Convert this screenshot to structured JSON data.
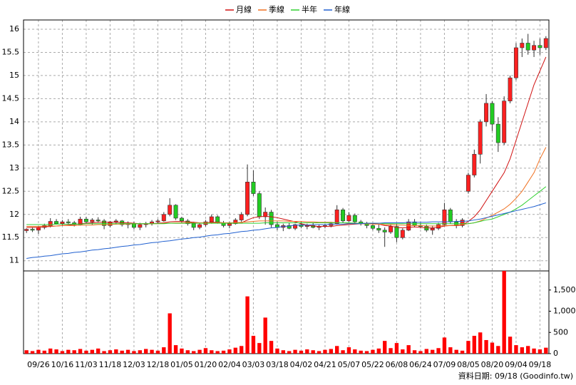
{
  "chart_data": {
    "type": "candlestick",
    "categories": [
      null,
      null,
      "09/26",
      null,
      null,
      null,
      "10/16",
      null,
      null,
      null,
      "11/03",
      null,
      null,
      null,
      "11/18",
      null,
      null,
      null,
      "12/03",
      null,
      null,
      null,
      "12/18",
      null,
      null,
      null,
      "01/05",
      null,
      null,
      null,
      "01/20",
      null,
      null,
      null,
      "02/04",
      null,
      null,
      null,
      "03/03",
      null,
      null,
      null,
      "03/18",
      null,
      null,
      null,
      "04/02",
      null,
      null,
      null,
      "04/21",
      null,
      null,
      null,
      "05/07",
      null,
      null,
      null,
      "05/22",
      null,
      null,
      null,
      "06/08",
      null,
      null,
      null,
      "06/24",
      null,
      null,
      null,
      "07/09",
      null,
      null,
      null,
      "08/05",
      null,
      null,
      null,
      "08/20",
      null,
      null,
      null,
      "09/04",
      null,
      null,
      null,
      "09/18",
      null
    ],
    "open": [
      11.65,
      11.68,
      11.66,
      11.72,
      11.76,
      11.85,
      11.8,
      11.84,
      11.82,
      11.78,
      11.9,
      11.84,
      11.88,
      11.86,
      11.76,
      11.84,
      11.86,
      11.78,
      11.8,
      11.72,
      11.78,
      11.8,
      11.84,
      11.86,
      12.0,
      12.2,
      11.92,
      11.86,
      11.8,
      11.72,
      11.78,
      11.84,
      11.95,
      11.82,
      11.76,
      11.8,
      11.88,
      12.0,
      12.7,
      12.45,
      11.95,
      12.05,
      11.78,
      11.72,
      11.76,
      11.7,
      11.78,
      11.74,
      11.76,
      11.72,
      11.74,
      11.76,
      11.8,
      12.1,
      11.86,
      11.98,
      11.84,
      11.8,
      11.76,
      11.7,
      11.66,
      11.62,
      11.74,
      11.5,
      11.66,
      11.84,
      11.76,
      11.74,
      11.66,
      11.7,
      11.78,
      12.1,
      11.84,
      11.76,
      12.5,
      12.85,
      13.3,
      14.0,
      14.4,
      13.95,
      13.55,
      14.45,
      14.95,
      15.6,
      15.7,
      15.55,
      15.65,
      15.6
    ],
    "high": [
      11.7,
      11.72,
      11.75,
      11.8,
      11.92,
      11.9,
      11.88,
      11.9,
      11.86,
      11.95,
      11.95,
      11.92,
      11.94,
      11.9,
      11.86,
      11.9,
      11.88,
      11.85,
      11.84,
      11.82,
      11.84,
      11.88,
      11.9,
      12.05,
      12.35,
      12.22,
      11.95,
      11.9,
      11.84,
      11.82,
      11.88,
      12.0,
      11.98,
      11.86,
      11.84,
      11.92,
      12.05,
      13.08,
      12.95,
      12.5,
      12.15,
      12.1,
      11.84,
      11.8,
      11.82,
      11.8,
      11.84,
      11.8,
      11.82,
      11.78,
      11.8,
      11.84,
      12.2,
      12.14,
      12.05,
      12.02,
      11.88,
      11.84,
      11.8,
      11.78,
      11.72,
      11.78,
      11.8,
      11.7,
      11.9,
      11.9,
      11.82,
      11.78,
      11.76,
      11.82,
      12.25,
      12.14,
      11.9,
      11.92,
      12.9,
      13.4,
      14.05,
      14.6,
      14.45,
      14.1,
      14.55,
      15.0,
      15.7,
      15.8,
      15.9,
      15.75,
      15.8,
      15.85
    ],
    "low": [
      11.6,
      11.62,
      11.58,
      11.68,
      11.72,
      11.78,
      11.75,
      11.78,
      11.74,
      11.76,
      11.8,
      11.78,
      11.82,
      11.68,
      11.72,
      11.78,
      11.74,
      11.7,
      11.68,
      11.66,
      11.72,
      11.76,
      11.8,
      11.84,
      11.96,
      11.88,
      11.82,
      11.76,
      11.66,
      11.68,
      11.74,
      11.8,
      11.8,
      11.72,
      11.7,
      11.78,
      11.84,
      11.96,
      12.4,
      11.9,
      11.78,
      11.72,
      11.66,
      11.64,
      11.68,
      11.66,
      11.7,
      11.68,
      11.7,
      11.66,
      11.7,
      11.72,
      11.78,
      11.82,
      11.84,
      11.8,
      11.76,
      11.7,
      11.66,
      11.6,
      11.3,
      11.58,
      11.4,
      11.46,
      11.64,
      11.72,
      11.7,
      11.62,
      11.56,
      11.66,
      11.74,
      11.8,
      11.7,
      11.72,
      12.45,
      12.8,
      13.1,
      13.9,
      13.8,
      13.35,
      13.5,
      14.4,
      14.9,
      15.4,
      15.45,
      15.4,
      15.45,
      15.55
    ],
    "close": [
      11.68,
      11.66,
      11.72,
      11.76,
      11.85,
      11.8,
      11.84,
      11.82,
      11.78,
      11.9,
      11.84,
      11.88,
      11.86,
      11.76,
      11.84,
      11.86,
      11.78,
      11.8,
      11.72,
      11.78,
      11.8,
      11.84,
      11.86,
      12.0,
      12.2,
      11.92,
      11.86,
      11.8,
      11.72,
      11.78,
      11.84,
      11.95,
      11.82,
      11.76,
      11.8,
      11.88,
      12.0,
      12.7,
      12.45,
      11.95,
      12.05,
      11.78,
      11.72,
      11.76,
      11.7,
      11.78,
      11.74,
      11.76,
      11.72,
      11.74,
      11.76,
      11.8,
      12.1,
      11.86,
      11.98,
      11.84,
      11.8,
      11.76,
      11.7,
      11.66,
      11.62,
      11.74,
      11.5,
      11.66,
      11.84,
      11.76,
      11.74,
      11.66,
      11.7,
      11.78,
      12.1,
      11.84,
      11.76,
      11.88,
      12.85,
      13.3,
      14.0,
      14.4,
      13.95,
      13.55,
      14.45,
      14.95,
      15.6,
      15.7,
      15.55,
      15.65,
      15.6,
      15.8
    ],
    "up_color": "#ff2020",
    "down_color": "#22cc22",
    "ylim": [
      10.78,
      16.2
    ],
    "yticks": [
      11,
      11.5,
      12,
      12.5,
      13,
      13.5,
      14,
      14.5,
      15,
      15.5,
      16
    ],
    "grid": true,
    "legend": "top",
    "series": [
      {
        "name": "月線",
        "color": "#d01010",
        "values": [
          11.72,
          11.72,
          11.72,
          11.73,
          11.74,
          11.75,
          11.76,
          11.77,
          11.78,
          11.8,
          11.81,
          11.82,
          11.83,
          11.83,
          11.83,
          11.83,
          11.82,
          11.82,
          11.81,
          11.8,
          11.8,
          11.8,
          11.81,
          11.82,
          11.84,
          11.85,
          11.85,
          11.84,
          11.83,
          11.82,
          11.82,
          11.83,
          11.83,
          11.82,
          11.81,
          11.81,
          11.82,
          11.88,
          11.93,
          11.95,
          11.96,
          11.95,
          11.93,
          11.9,
          11.87,
          11.84,
          11.8,
          11.77,
          11.75,
          11.74,
          11.74,
          11.74,
          11.76,
          11.77,
          11.78,
          11.79,
          11.8,
          11.8,
          11.8,
          11.79,
          11.76,
          11.75,
          11.72,
          11.71,
          11.72,
          11.73,
          11.72,
          11.71,
          11.71,
          11.72,
          11.75,
          11.76,
          11.76,
          11.77,
          11.85,
          11.95,
          12.1,
          12.3,
          12.5,
          12.7,
          12.9,
          13.2,
          13.6,
          14.0,
          14.4,
          14.8,
          15.1,
          15.4
        ]
      },
      {
        "name": "季線",
        "color": "#f07020",
        "values": [
          11.74,
          11.74,
          11.74,
          11.75,
          11.75,
          11.75,
          11.76,
          11.76,
          11.76,
          11.77,
          11.77,
          11.77,
          11.78,
          11.78,
          11.78,
          11.79,
          11.79,
          11.79,
          11.8,
          11.8,
          11.8,
          11.8,
          11.8,
          11.81,
          11.81,
          11.82,
          11.82,
          11.82,
          11.82,
          11.82,
          11.82,
          11.82,
          11.82,
          11.82,
          11.82,
          11.82,
          11.83,
          11.84,
          11.85,
          11.86,
          11.86,
          11.86,
          11.86,
          11.86,
          11.85,
          11.85,
          11.85,
          11.84,
          11.84,
          11.83,
          11.83,
          11.83,
          11.82,
          11.82,
          11.81,
          11.81,
          11.8,
          11.8,
          11.79,
          11.79,
          11.78,
          11.78,
          11.77,
          11.77,
          11.76,
          11.76,
          11.76,
          11.75,
          11.75,
          11.75,
          11.76,
          11.76,
          11.77,
          11.78,
          11.8,
          11.82,
          11.86,
          11.92,
          11.98,
          12.05,
          12.12,
          12.22,
          12.35,
          12.5,
          12.7,
          12.9,
          13.2,
          13.45
        ]
      },
      {
        "name": "半年",
        "color": "#30d030",
        "values": [
          11.78,
          11.78,
          11.78,
          11.78,
          11.78,
          11.79,
          11.79,
          11.79,
          11.79,
          11.79,
          11.8,
          11.8,
          11.8,
          11.8,
          11.8,
          11.8,
          11.8,
          11.8,
          11.8,
          11.8,
          11.8,
          11.8,
          11.8,
          11.8,
          11.81,
          11.81,
          11.81,
          11.81,
          11.81,
          11.81,
          11.81,
          11.81,
          11.81,
          11.81,
          11.81,
          11.81,
          11.81,
          11.81,
          11.81,
          11.81,
          11.82,
          11.82,
          11.82,
          11.82,
          11.82,
          11.82,
          11.82,
          11.82,
          11.82,
          11.82,
          11.82,
          11.82,
          11.82,
          11.82,
          11.82,
          11.81,
          11.81,
          11.81,
          11.81,
          11.81,
          11.8,
          11.8,
          11.8,
          11.8,
          11.8,
          11.8,
          11.8,
          11.8,
          11.8,
          11.8,
          11.8,
          11.8,
          11.8,
          11.8,
          11.8,
          11.82,
          11.85,
          11.88,
          11.9,
          11.95,
          12.0,
          12.05,
          12.12,
          12.2,
          12.3,
          12.4,
          12.5,
          12.6
        ]
      },
      {
        "name": "年線",
        "color": "#2060d0",
        "values": [
          11.05,
          11.07,
          11.08,
          11.1,
          11.11,
          11.13,
          11.15,
          11.16,
          11.18,
          11.19,
          11.21,
          11.23,
          11.24,
          11.26,
          11.27,
          11.29,
          11.31,
          11.32,
          11.34,
          11.35,
          11.37,
          11.39,
          11.4,
          11.42,
          11.43,
          11.45,
          11.47,
          11.48,
          11.5,
          11.51,
          11.53,
          11.55,
          11.56,
          11.58,
          11.59,
          11.61,
          11.63,
          11.64,
          11.66,
          11.67,
          11.69,
          11.71,
          11.72,
          11.74,
          11.75,
          11.77,
          11.77,
          11.77,
          11.78,
          11.78,
          11.78,
          11.79,
          11.79,
          11.79,
          11.8,
          11.8,
          11.8,
          11.81,
          11.81,
          11.81,
          11.82,
          11.82,
          11.82,
          11.82,
          11.83,
          11.83,
          11.83,
          11.83,
          11.84,
          11.84,
          11.84,
          11.84,
          11.85,
          11.85,
          11.86,
          11.88,
          11.9,
          11.93,
          11.96,
          11.99,
          12.02,
          12.05,
          12.08,
          12.11,
          12.14,
          12.17,
          12.21,
          12.25
        ]
      }
    ],
    "volume": {
      "color": "#ff0000",
      "ylim": [
        0,
        1950
      ],
      "yticks": [
        0,
        500,
        {
          "value": 1000,
          "label": "1,000"
        },
        {
          "value": 1500,
          "label": "1,500"
        }
      ],
      "values": [
        80,
        60,
        90,
        70,
        120,
        100,
        60,
        90,
        80,
        110,
        70,
        90,
        120,
        60,
        80,
        100,
        70,
        90,
        60,
        80,
        110,
        90,
        70,
        150,
        950,
        200,
        120,
        80,
        60,
        90,
        130,
        80,
        60,
        70,
        100,
        140,
        180,
        1350,
        420,
        250,
        850,
        300,
        120,
        80,
        60,
        90,
        70,
        100,
        80,
        60,
        90,
        110,
        180,
        80,
        150,
        100,
        70,
        60,
        90,
        120,
        300,
        130,
        250,
        100,
        200,
        80,
        60,
        110,
        90,
        130,
        380,
        150,
        90,
        70,
        300,
        420,
        500,
        320,
        260,
        180,
        1950,
        400,
        200,
        150,
        180,
        120,
        100,
        140
      ]
    },
    "footer": "資料日期: 09/18 (Goodinfo.tw)"
  }
}
